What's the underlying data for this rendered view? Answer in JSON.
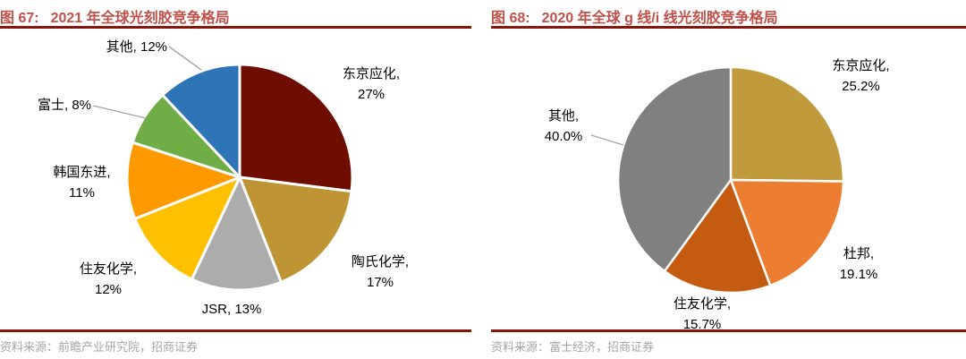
{
  "figures": [
    {
      "label": "图 67:",
      "title": "2021 年全球光刻胶竞争格局",
      "source": "资料来源：前瞻产业研究院，招商证券"
    },
    {
      "label": "图 68:",
      "title": "2020 年全球 g 线/i 线光刻胶竞争格局",
      "source": "资料来源：富士经济，招商证券"
    }
  ],
  "theme": {
    "title_color": "#C05048",
    "rule_color": "#8B1508",
    "source_text_color": "#A6A6A6",
    "leader_line_color": "#A6A6A6",
    "label_text_color": "#000000",
    "background": "#FFFFFF"
  },
  "chart_data": [
    {
      "type": "pie",
      "title": "2021 年全球光刻胶竞争格局",
      "legend": "none",
      "labels_position": "outside",
      "start_angle": "12-o'clock, clockwise",
      "units": "%",
      "slices": [
        {
          "id": "tokyo-ohka",
          "name": "东京应化",
          "value": 27,
          "color": "#6F0D00",
          "lines": [
            "东京应化,",
            "27%"
          ]
        },
        {
          "id": "dow",
          "name": "陶氏化学",
          "value": 17,
          "color": "#BF9435",
          "lines": [
            "陶氏化学,",
            "17%"
          ]
        },
        {
          "id": "jsr",
          "name": "JSR",
          "value": 13,
          "color": "#ACACAC",
          "lines": [
            "JSR, 13%"
          ]
        },
        {
          "id": "sumitomo",
          "name": "住友化学",
          "value": 12,
          "color": "#FFC000",
          "lines": [
            "住友化学,",
            "12%"
          ]
        },
        {
          "id": "dongjin",
          "name": "韩国东进",
          "value": 11,
          "color": "#FF9900",
          "lines": [
            "韩国东进,",
            "11%"
          ]
        },
        {
          "id": "fuji",
          "name": "富士",
          "value": 8,
          "color": "#70AD47",
          "lines": [
            "富士, 8%"
          ]
        },
        {
          "id": "others",
          "name": "其他",
          "value": 12,
          "color": "#2E74B6",
          "lines": [
            "其他, 12%"
          ]
        }
      ]
    },
    {
      "type": "pie",
      "title": "2020 年全球 g 线/i 线光刻胶竞争格局",
      "legend": "none",
      "labels_position": "outside",
      "start_angle": "12-o'clock, clockwise",
      "units": "%",
      "slices": [
        {
          "id": "tokyo-ohka",
          "name": "东京应化",
          "value": 25.2,
          "color": "#C19A3B",
          "lines": [
            "东京应化,",
            "25.2%"
          ]
        },
        {
          "id": "dupont",
          "name": "杜邦",
          "value": 19.1,
          "color": "#ED7D31",
          "lines": [
            "杜邦,",
            "19.1%"
          ]
        },
        {
          "id": "sumitomo",
          "name": "住友化学",
          "value": 15.7,
          "color": "#C55A11",
          "lines": [
            "住友化学,",
            "15.7%"
          ]
        },
        {
          "id": "others",
          "name": "其他",
          "value": 40.0,
          "color": "#808080",
          "lines": [
            "其他,",
            "40.0%"
          ]
        }
      ]
    }
  ]
}
